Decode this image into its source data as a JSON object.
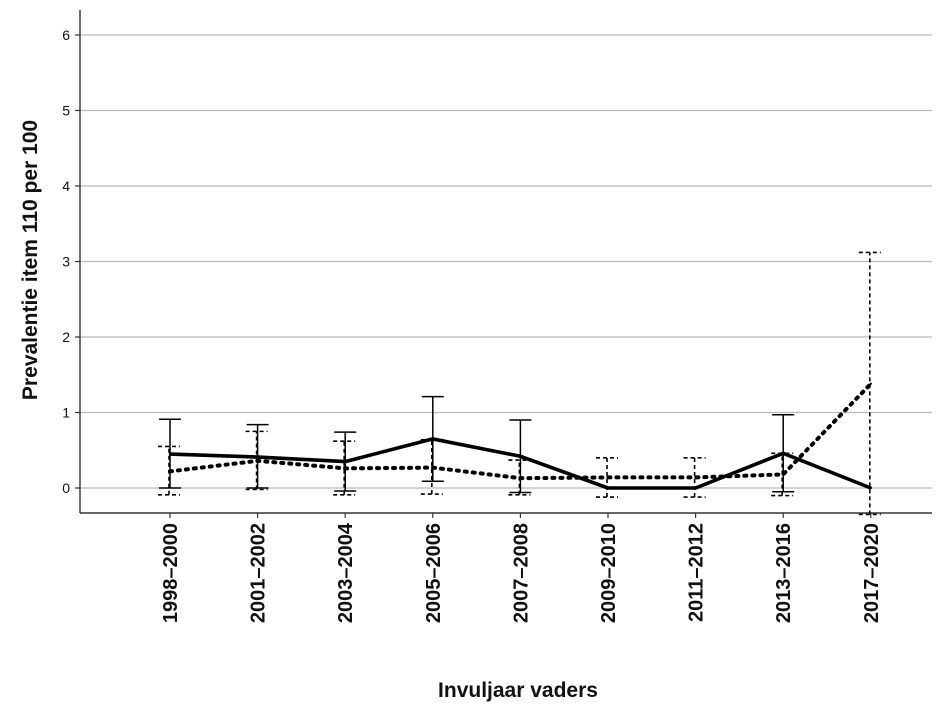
{
  "chart_data": {
    "type": "line",
    "xlabel": "Invuljaar vaders",
    "ylabel": "Prevalentie item 110 per 100",
    "ylim": [
      0,
      6.6
    ],
    "yticks": [
      0,
      1,
      2,
      3,
      4,
      5,
      6
    ],
    "grid": true,
    "legend": "none",
    "categories": [
      "1998–2000",
      "2001–2002",
      "2003–2004",
      "2005–2006",
      "2007–2008",
      "2009–2010",
      "2011–2012",
      "2013–2016",
      "2017–2020"
    ],
    "series": [
      {
        "style": "solid",
        "color": "#000000",
        "values": [
          0.45,
          0.41,
          0.35,
          0.65,
          0.42,
          0.0,
          0.0,
          0.46,
          0.0
        ],
        "ci_low": [
          0.0,
          0.0,
          -0.04,
          0.09,
          -0.06,
          0.0,
          0.0,
          -0.05,
          0.0
        ],
        "ci_high": [
          0.91,
          0.84,
          0.74,
          1.21,
          0.9,
          0.0,
          0.0,
          0.97,
          0.0
        ]
      },
      {
        "style": "dotted",
        "color": "#000000",
        "values": [
          0.22,
          0.36,
          0.26,
          0.27,
          0.13,
          0.14,
          0.14,
          0.18,
          1.38
        ],
        "ci_low": [
          -0.09,
          -0.02,
          -0.09,
          -0.08,
          -0.09,
          -0.12,
          -0.12,
          -0.1,
          -0.35
        ],
        "ci_high": [
          0.55,
          0.75,
          0.62,
          0.64,
          0.37,
          0.4,
          0.4,
          0.46,
          3.12
        ]
      }
    ]
  }
}
